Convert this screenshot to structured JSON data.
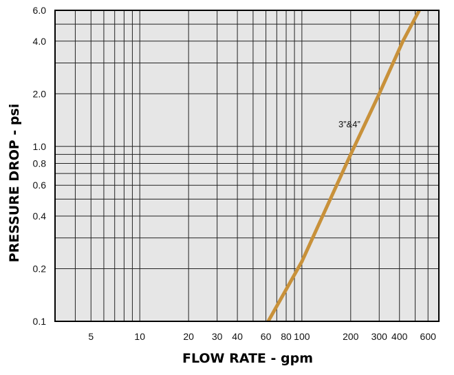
{
  "chart_data": {
    "type": "line",
    "xlabel": "FLOW RATE - gpm",
    "ylabel": "PRESSURE DROP - psi",
    "x_scale": "log",
    "y_scale": "log",
    "xlim": [
      3,
      700
    ],
    "ylim": [
      0.1,
      6.0
    ],
    "grid": true,
    "x_ticks": [
      {
        "value": 5,
        "label": "5"
      },
      {
        "value": 10,
        "label": "10"
      },
      {
        "value": 20,
        "label": "20"
      },
      {
        "value": 30,
        "label": "30"
      },
      {
        "value": 40,
        "label": "40"
      },
      {
        "value": 60,
        "label": "60"
      },
      {
        "value": 80,
        "label": "80"
      },
      {
        "value": 100,
        "label": "100"
      },
      {
        "value": 200,
        "label": "200"
      },
      {
        "value": 300,
        "label": "300"
      },
      {
        "value": 400,
        "label": "400"
      },
      {
        "value": 600,
        "label": "600"
      }
    ],
    "y_ticks": [
      {
        "value": 0.1,
        "label": "0.1"
      },
      {
        "value": 0.2,
        "label": "0.2"
      },
      {
        "value": 0.4,
        "label": "0.4"
      },
      {
        "value": 0.6,
        "label": "0.6"
      },
      {
        "value": 0.8,
        "label": "0.8"
      },
      {
        "value": 1.0,
        "label": "1.0"
      },
      {
        "value": 2.0,
        "label": "2.0"
      },
      {
        "value": 4.0,
        "label": "4.0"
      },
      {
        "value": 6.0,
        "label": "6.0"
      }
    ],
    "series": [
      {
        "name": "3”&4”",
        "color": "#c8913a",
        "x": [
          62,
          100,
          200,
          300,
          420,
          530
        ],
        "y": [
          0.1,
          0.22,
          0.9,
          2.0,
          4.0,
          6.0
        ]
      }
    ]
  }
}
